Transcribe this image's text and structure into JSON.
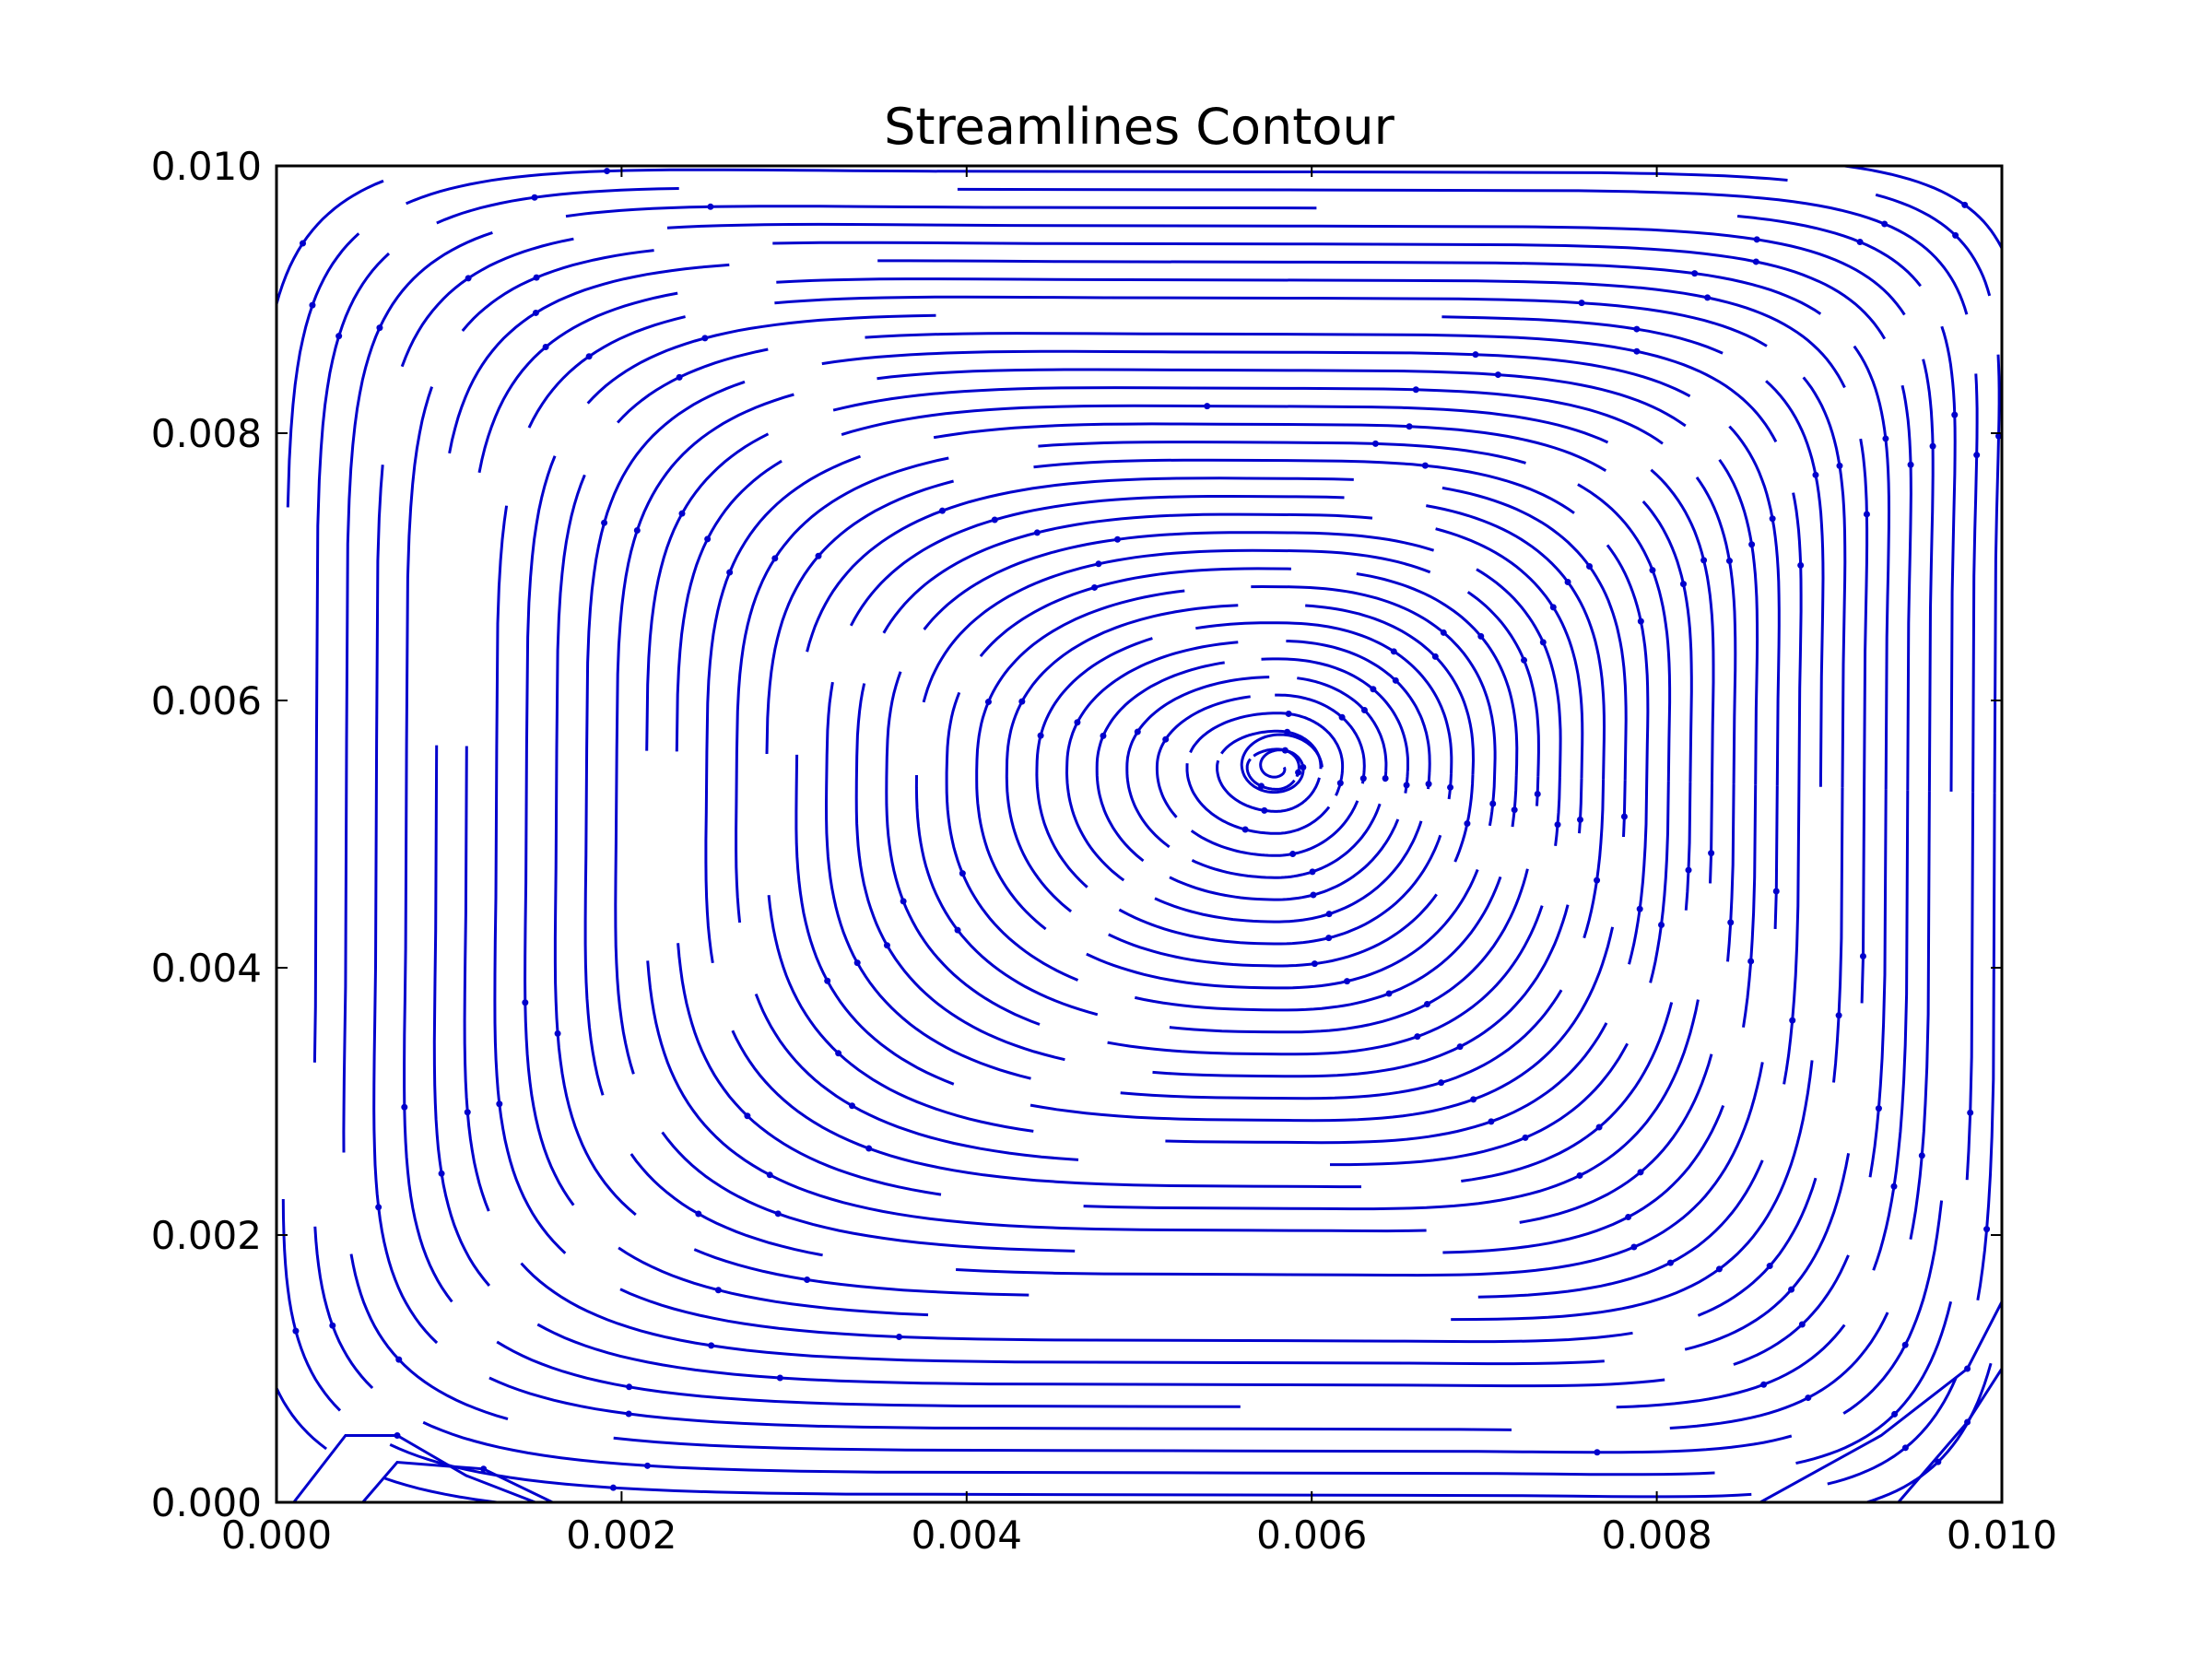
{
  "chart_data": {
    "type": "streamplot",
    "title": "Streamlines Contour",
    "xlabel": "",
    "ylabel": "",
    "xlim": [
      0.0,
      0.01
    ],
    "ylim": [
      0.0,
      0.01
    ],
    "xticks": [
      "0.000",
      "0.002",
      "0.004",
      "0.006",
      "0.008",
      "0.010"
    ],
    "yticks": [
      "0.000",
      "0.002",
      "0.004",
      "0.006",
      "0.008",
      "0.010"
    ],
    "grid": false,
    "legend": null,
    "line_color": "#0000cc",
    "vortex_center": [
      0.0058,
      0.0055
    ],
    "flow_direction": "clockwise",
    "description_note": ""
  }
}
